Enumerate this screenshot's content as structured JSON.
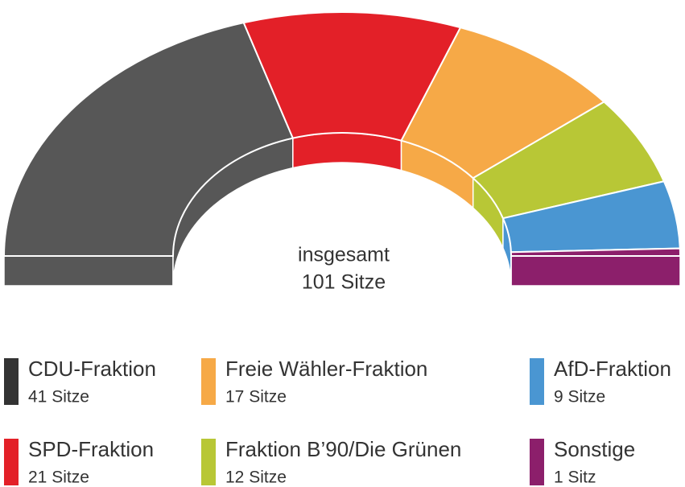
{
  "chart_data": {
    "type": "parliament",
    "center_lines": [
      "insgesamt",
      "101 Sitze"
    ],
    "series": [
      {
        "name": "CDU-Fraktion",
        "color": "#575757",
        "legend_color": "#333333",
        "value": 41,
        "value_label": "41 Sitze"
      },
      {
        "name": "SPD-Fraktion",
        "color": "#e32028",
        "legend_color": "#e32028",
        "value": 21,
        "value_label": "21 Sitze"
      },
      {
        "name": "Freie Wähler-Fraktion",
        "color": "#f6a947",
        "legend_color": "#f6a947",
        "value": 17,
        "value_label": "17 Sitze"
      },
      {
        "name": "Fraktion B’90/Die Grünen",
        "color": "#b8c736",
        "legend_color": "#b8c736",
        "value": 12,
        "value_label": "12 Sitze"
      },
      {
        "name": "AfD-Fraktion",
        "color": "#4a96d2",
        "legend_color": "#4a96d2",
        "value": 9,
        "value_label": "9 Sitze"
      },
      {
        "name": "Sonstige",
        "color": "#8c1f6b",
        "legend_color": "#8c1f6b",
        "value": 1,
        "value_label": "1 Sitz"
      }
    ]
  }
}
